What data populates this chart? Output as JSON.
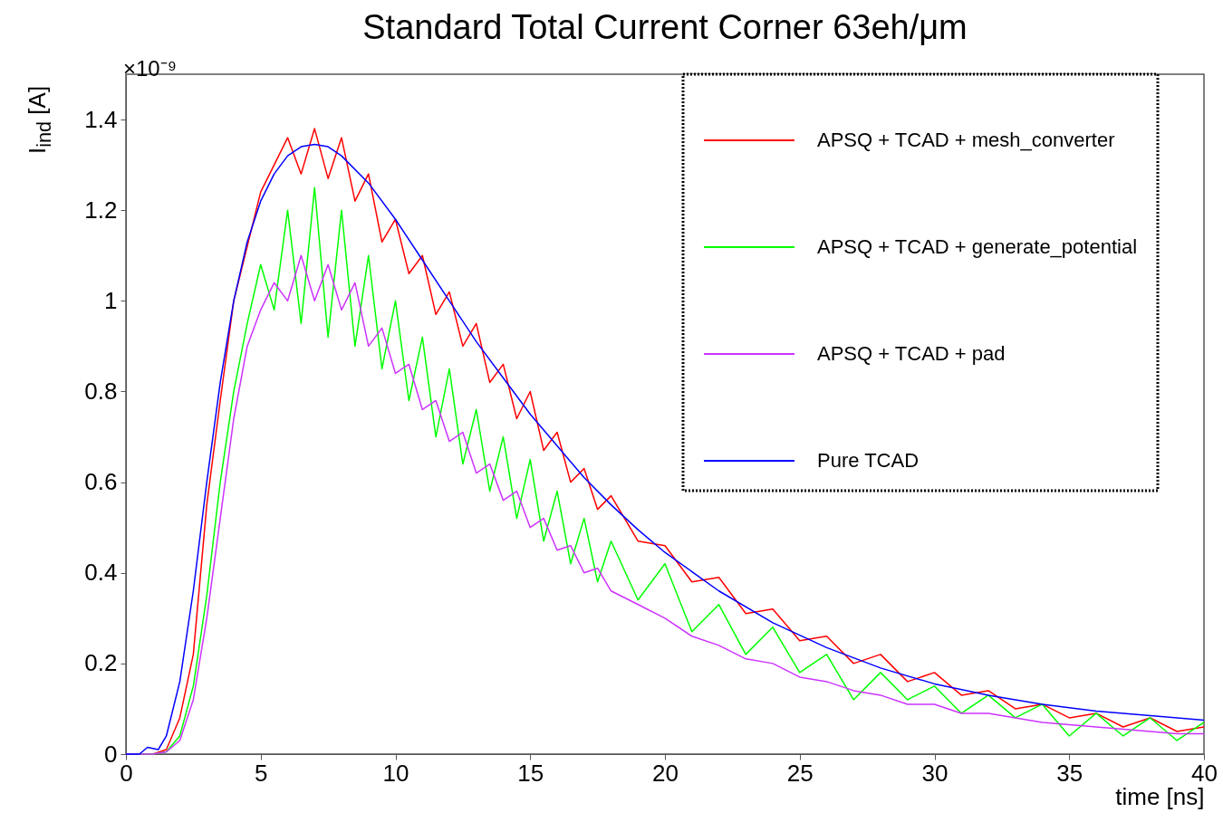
{
  "chart_data": {
    "type": "line",
    "title": "Standard Total Current Corner 63eh/μm",
    "xlabel": "time [ns]",
    "ylabel": "I$_{ind}$ [A]",
    "annotations": [
      "×10⁻⁹"
    ],
    "xlim": [
      0,
      40
    ],
    "ylim": [
      0,
      1.5
    ],
    "xticks": [
      0,
      5,
      10,
      15,
      20,
      25,
      30,
      35,
      40
    ],
    "yticks": [
      0,
      0.2,
      0.4,
      0.6,
      0.8,
      1,
      1.2,
      1.4
    ],
    "grid": false,
    "legend": "top right",
    "x": [
      0,
      1,
      1.5,
      2,
      2.5,
      3,
      3.5,
      4,
      4.5,
      5,
      5.5,
      6,
      6.5,
      7,
      7.5,
      8,
      8.5,
      9,
      9.5,
      10,
      10.5,
      11,
      11.5,
      12,
      12.5,
      13,
      13.5,
      14,
      14.5,
      15,
      15.5,
      16,
      16.5,
      17,
      17.5,
      18,
      19,
      20,
      21,
      22,
      23,
      24,
      25,
      26,
      27,
      28,
      29,
      30,
      31,
      32,
      33,
      34,
      35,
      36,
      37,
      38,
      39,
      40
    ],
    "series": [
      {
        "name": "APSQ + TCAD + mesh_converter",
        "color": "#ff0000",
        "values": [
          0,
          0,
          0.01,
          0.08,
          0.22,
          0.55,
          0.78,
          1.0,
          1.12,
          1.24,
          1.3,
          1.36,
          1.28,
          1.38,
          1.27,
          1.36,
          1.22,
          1.28,
          1.13,
          1.18,
          1.06,
          1.1,
          0.97,
          1.02,
          0.9,
          0.95,
          0.82,
          0.86,
          0.74,
          0.8,
          0.67,
          0.71,
          0.6,
          0.63,
          0.54,
          0.57,
          0.47,
          0.46,
          0.38,
          0.39,
          0.31,
          0.32,
          0.25,
          0.26,
          0.2,
          0.22,
          0.16,
          0.18,
          0.13,
          0.14,
          0.1,
          0.11,
          0.08,
          0.09,
          0.06,
          0.08,
          0.05,
          0.06
        ]
      },
      {
        "name": "APSQ + TCAD + generate_potential",
        "color": "#00ff00",
        "values": [
          0,
          0,
          0.005,
          0.04,
          0.15,
          0.35,
          0.6,
          0.8,
          0.95,
          1.08,
          0.98,
          1.2,
          0.95,
          1.25,
          0.92,
          1.2,
          0.9,
          1.1,
          0.85,
          1.0,
          0.78,
          0.92,
          0.7,
          0.85,
          0.64,
          0.76,
          0.58,
          0.7,
          0.52,
          0.65,
          0.47,
          0.58,
          0.42,
          0.52,
          0.38,
          0.47,
          0.34,
          0.42,
          0.27,
          0.33,
          0.22,
          0.28,
          0.18,
          0.22,
          0.12,
          0.18,
          0.12,
          0.15,
          0.09,
          0.13,
          0.08,
          0.11,
          0.04,
          0.09,
          0.04,
          0.08,
          0.03,
          0.07
        ]
      },
      {
        "name": "APSQ + TCAD + pad",
        "color": "#cc33ff",
        "values": [
          0,
          0,
          0.005,
          0.03,
          0.12,
          0.3,
          0.52,
          0.74,
          0.9,
          0.98,
          1.04,
          1.0,
          1.1,
          1.0,
          1.08,
          0.98,
          1.04,
          0.9,
          0.94,
          0.84,
          0.86,
          0.76,
          0.78,
          0.69,
          0.71,
          0.62,
          0.64,
          0.56,
          0.58,
          0.5,
          0.52,
          0.45,
          0.46,
          0.4,
          0.41,
          0.36,
          0.33,
          0.3,
          0.26,
          0.24,
          0.21,
          0.2,
          0.17,
          0.16,
          0.14,
          0.13,
          0.11,
          0.11,
          0.09,
          0.09,
          0.08,
          0.07,
          0.065,
          0.06,
          0.055,
          0.05,
          0.045,
          0.045
        ]
      },
      {
        "name": "Pure TCAD",
        "color": "#0000ff",
        "x": [
          0,
          0.5,
          0.8,
          1.2,
          1.5,
          2,
          2.5,
          3,
          3.5,
          4,
          4.5,
          5,
          5.5,
          6,
          6.5,
          7,
          7.5,
          8,
          9,
          10,
          11,
          12,
          13,
          14,
          15,
          16,
          17,
          18,
          19,
          20,
          22,
          24,
          26,
          28,
          30,
          32,
          34,
          36,
          38,
          40
        ],
        "values": [
          0,
          0,
          0.015,
          0.01,
          0.04,
          0.16,
          0.36,
          0.6,
          0.82,
          1.0,
          1.13,
          1.22,
          1.28,
          1.32,
          1.34,
          1.345,
          1.34,
          1.32,
          1.26,
          1.18,
          1.09,
          1.0,
          0.91,
          0.83,
          0.75,
          0.68,
          0.61,
          0.55,
          0.495,
          0.445,
          0.36,
          0.29,
          0.235,
          0.19,
          0.155,
          0.13,
          0.11,
          0.095,
          0.085,
          0.075
        ]
      }
    ]
  }
}
